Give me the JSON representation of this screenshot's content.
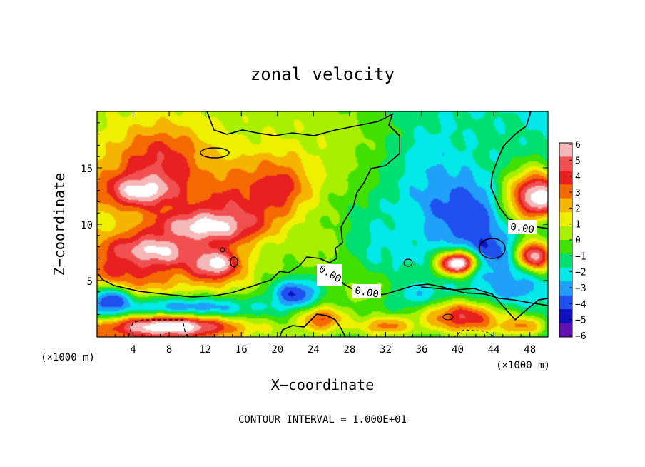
{
  "chart_data": {
    "type": "heatmap",
    "title": "zonal velocity",
    "xlabel": "X−coordinate",
    "ylabel": "Z−coordinate",
    "x_unit_label": "(×1000 m)",
    "y_unit_label": "(×1000 m)",
    "xlim": [
      0,
      50
    ],
    "ylim": [
      0,
      20
    ],
    "x_ticks": [
      "4",
      "8",
      "12",
      "16",
      "20",
      "24",
      "28",
      "32",
      "36",
      "40",
      "44",
      "48"
    ],
    "y_ticks": [
      "5",
      "10",
      "15"
    ],
    "colorbar": {
      "min": -6,
      "max": 6,
      "tick_labels": [
        "6",
        "5",
        "4",
        "3",
        "2",
        "1",
        "0",
        "−1",
        "−2",
        "−3",
        "−4",
        "−5",
        "−6"
      ],
      "colors": [
        "#f4b8b8",
        "#f05050",
        "#e82020",
        "#f46a00",
        "#f4b400",
        "#eef000",
        "#a8f000",
        "#40e000",
        "#00e070",
        "#00e8e8",
        "#20a0f8",
        "#2050f0",
        "#1010c0",
        "#6010b0"
      ]
    },
    "contour_labels": [
      "0.00",
      "0.00",
      "0.00"
    ],
    "contour_interval_text": "CONTOUR INTERVAL = 1.000E+01",
    "blobs": [
      {
        "x": 0,
        "z": 19.5,
        "sx": 10,
        "sz": 6,
        "v": 0.5
      },
      {
        "x": 22,
        "z": 18,
        "sx": 14,
        "sz": 4,
        "v": 0.6
      },
      {
        "x": 7,
        "z": 15.5,
        "sx": 5,
        "sz": 3.2,
        "v": 4.2
      },
      {
        "x": 15,
        "z": 12,
        "sx": 5,
        "sz": 3,
        "v": 3.6
      },
      {
        "x": 20,
        "z": 13,
        "sx": 4,
        "sz": 3,
        "v": 4.0
      },
      {
        "x": 5,
        "z": 13,
        "sx": 4,
        "sz": 1.5,
        "v": 6.6
      },
      {
        "x": 12,
        "z": 9.8,
        "sx": 6,
        "sz": 1.6,
        "v": 6.6
      },
      {
        "x": 6,
        "z": 7.5,
        "sx": 5,
        "sz": 1.6,
        "v": 6.8
      },
      {
        "x": 13,
        "z": 6.5,
        "sx": 3,
        "sz": 1.5,
        "v": 6.5
      },
      {
        "x": 3,
        "z": 5.5,
        "sx": 4,
        "sz": 2,
        "v": 4.0
      },
      {
        "x": 25,
        "z": 8.5,
        "sx": 4,
        "sz": 3,
        "v": 0.6
      },
      {
        "x": 1.5,
        "z": 3,
        "sx": 2.5,
        "sz": 1.5,
        "v": -5.0
      },
      {
        "x": 10,
        "z": 2.5,
        "sx": 10,
        "sz": 1.2,
        "v": -3.5
      },
      {
        "x": 8,
        "z": 0.9,
        "sx": 7,
        "sz": 1.0,
        "v": 7.0
      },
      {
        "x": 22,
        "z": 3.8,
        "sx": 3,
        "sz": 1.5,
        "v": -4.3
      },
      {
        "x": 25,
        "z": 1.6,
        "sx": 2.5,
        "sz": 1.1,
        "v": 3.5
      },
      {
        "x": 32,
        "z": 1.0,
        "sx": 3,
        "sz": 0.9,
        "v": 3.0
      },
      {
        "x": 38,
        "z": 15,
        "sx": 6,
        "sz": 5,
        "v": -2.5
      },
      {
        "x": 40.5,
        "z": 11,
        "sx": 5,
        "sz": 3.2,
        "v": -4.2
      },
      {
        "x": 33,
        "z": 8,
        "sx": 5,
        "sz": 3,
        "v": -2.0
      },
      {
        "x": 43,
        "z": 7.5,
        "sx": 3,
        "sz": 2,
        "v": -4.5
      },
      {
        "x": 40,
        "z": 6.5,
        "sx": 2.2,
        "sz": 1.1,
        "v": 7.5
      },
      {
        "x": 48.5,
        "z": 7,
        "sx": 2,
        "sz": 1.6,
        "v": 7.0
      },
      {
        "x": 48,
        "z": 12.5,
        "sx": 3,
        "sz": 2.8,
        "v": 5.0
      },
      {
        "x": 49.5,
        "z": 12.5,
        "sx": 1.5,
        "sz": 1.4,
        "v": 7.0
      },
      {
        "x": 36,
        "z": 3.5,
        "sx": 6,
        "sz": 1.3,
        "v": -3.0
      },
      {
        "x": 41,
        "z": 1.8,
        "sx": 5,
        "sz": 1.6,
        "v": 4.5
      },
      {
        "x": 47,
        "z": 1.0,
        "sx": 3,
        "sz": 1.0,
        "v": 3.0
      },
      {
        "x": 46,
        "z": 4.5,
        "sx": 4,
        "sz": 2,
        "v": -3.0
      },
      {
        "x": 30,
        "z": 4.0,
        "sx": 3,
        "sz": 1.5,
        "v": 0.3
      },
      {
        "x": 44,
        "z": 18,
        "sx": 5,
        "sz": 3,
        "v": -1.5
      }
    ]
  },
  "footer": {
    "contour_interval": "CONTOUR INTERVAL = 1.000E+01"
  }
}
